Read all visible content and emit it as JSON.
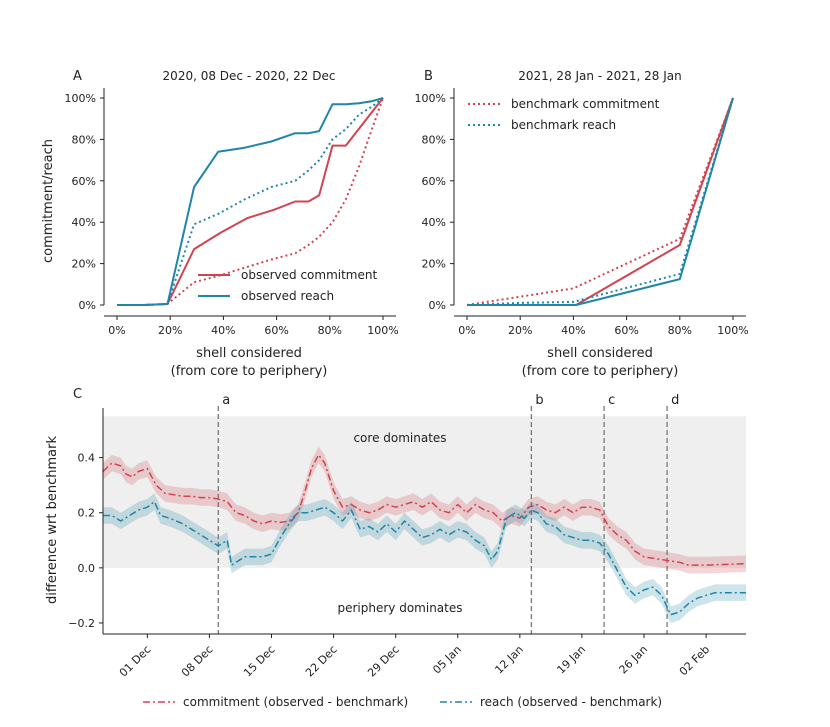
{
  "colors": {
    "commitment": "#d1434f",
    "reach": "#1f86a6",
    "band_grey": "#efefef",
    "vline": "#777777"
  },
  "panels": {
    "A": {
      "letter": "A",
      "title": "2020, 08 Dec - 2020, 22 Dec",
      "ylabel": "commitment/reach",
      "xlabel_line1": "shell considered",
      "xlabel_line2": "(from core to periphery)",
      "xticks": [
        "0%",
        "20%",
        "40%",
        "60%",
        "80%",
        "100%"
      ],
      "yticks": [
        "0%",
        "20%",
        "40%",
        "60%",
        "80%",
        "100%"
      ],
      "legend": [
        "observed commitment",
        "observed reach"
      ]
    },
    "B": {
      "letter": "B",
      "title": "2021, 28 Jan - 2021, 28 Jan",
      "xlabel_line1": "shell considered",
      "xlabel_line2": "(from core to periphery)",
      "xticks": [
        "0%",
        "20%",
        "40%",
        "60%",
        "80%",
        "100%"
      ],
      "yticks": [
        "0%",
        "20%",
        "40%",
        "60%",
        "80%",
        "100%"
      ],
      "legend": [
        "benchmark commitment",
        "benchmark reach"
      ]
    },
    "C": {
      "letter": "C",
      "ylabel": "difference wrt benchmark",
      "yticks": [
        "−0.2",
        "0.0",
        "0.2",
        "0.4"
      ],
      "xticks": [
        "01 Dec",
        "08 Dec",
        "15 Dec",
        "22 Dec",
        "29 Dec",
        "05 Jan",
        "12 Jan",
        "19 Jan",
        "26 Jan",
        "02 Feb"
      ],
      "core_label": "core dominates",
      "periphery_label": "periphery dominates",
      "event_labels": [
        "a",
        "b",
        "c",
        "d"
      ],
      "legend": [
        "commitment (observed - benchmark)",
        "reach (observed - benchmark)"
      ]
    }
  },
  "chart_data": [
    {
      "type": "line",
      "panel": "A",
      "title": "2020, 08 Dec - 2020, 22 Dec",
      "xlabel": "shell considered (from core to periphery)",
      "ylabel": "commitment/reach",
      "xlim": [
        0,
        100
      ],
      "ylim": [
        0,
        100
      ],
      "series": [
        {
          "name": "observed commitment",
          "style": "solid",
          "color": "commitment",
          "x": [
            0,
            10,
            19,
            29,
            39,
            49,
            59,
            67,
            72,
            76,
            81,
            86,
            100
          ],
          "y": [
            0,
            0,
            0.5,
            27,
            35,
            42,
            46,
            50,
            50,
            53,
            77,
            77,
            100
          ]
        },
        {
          "name": "observed reach",
          "style": "solid",
          "color": "reach",
          "x": [
            0,
            10,
            19,
            29,
            38,
            48,
            58,
            67,
            72,
            76,
            81,
            86,
            91,
            96,
            100
          ],
          "y": [
            0,
            0,
            0.5,
            57,
            74,
            76,
            79,
            83,
            83,
            84,
            97,
            97,
            97.5,
            98.5,
            100
          ]
        },
        {
          "name": "benchmark commitment",
          "style": "dotted",
          "color": "commitment",
          "x": [
            0,
            10,
            19,
            29,
            38,
            48,
            58,
            67,
            72,
            76,
            81,
            86,
            91,
            95,
            100
          ],
          "y": [
            0,
            0,
            0.5,
            11,
            14,
            18,
            22,
            25,
            29,
            33,
            40,
            51,
            67,
            82,
            100
          ]
        },
        {
          "name": "benchmark reach",
          "style": "dotted",
          "color": "reach",
          "x": [
            0,
            10,
            19,
            29,
            38,
            48,
            58,
            67,
            72,
            76,
            81,
            86,
            91,
            96,
            100
          ],
          "y": [
            0,
            0,
            0.5,
            39,
            44,
            51,
            57,
            60,
            65,
            70,
            80,
            85,
            92,
            96,
            100
          ]
        }
      ]
    },
    {
      "type": "line",
      "panel": "B",
      "title": "2021, 28 Jan - 2021, 28 Jan",
      "xlabel": "shell considered (from core to periphery)",
      "xlim": [
        0,
        100
      ],
      "ylim": [
        0,
        100
      ],
      "series": [
        {
          "name": "observed commitment",
          "style": "solid",
          "color": "commitment",
          "x": [
            0,
            20,
            41,
            80,
            100
          ],
          "y": [
            0,
            0,
            0,
            29,
            100
          ]
        },
        {
          "name": "observed reach",
          "style": "solid",
          "color": "reach",
          "x": [
            0,
            20,
            41,
            80,
            100
          ],
          "y": [
            0,
            0,
            0,
            12.5,
            100
          ]
        },
        {
          "name": "benchmark commitment",
          "style": "dotted",
          "color": "commitment",
          "x": [
            0,
            20,
            40,
            80,
            100
          ],
          "y": [
            0,
            4,
            8,
            32,
            100
          ]
        },
        {
          "name": "benchmark reach",
          "style": "dotted",
          "color": "reach",
          "x": [
            0,
            20,
            40,
            80,
            100
          ],
          "y": [
            0,
            1,
            1.5,
            15,
            100
          ]
        }
      ]
    },
    {
      "type": "line",
      "panel": "C",
      "ylabel": "difference wrt benchmark",
      "x_unit": "days since 2020-11-26",
      "xlim": [
        0,
        72.5
      ],
      "ylim": [
        -0.24,
        0.58
      ],
      "shaded_region": {
        "y": [
          0,
          0.55
        ]
      },
      "events": [
        {
          "label": "a",
          "x": 13
        },
        {
          "label": "b",
          "x": 48.3
        },
        {
          "label": "c",
          "x": 56.5
        },
        {
          "label": "d",
          "x": 63.6
        }
      ],
      "xtick_days": [
        5,
        12,
        19,
        26,
        33,
        40,
        47,
        54,
        61,
        68
      ],
      "series": [
        {
          "name": "commitment (observed - benchmark)",
          "style": "dashdot",
          "color": "commitment",
          "band": 0.03,
          "x": [
            0,
            1,
            2,
            2.6,
            3.3,
            4,
            5,
            6,
            7,
            8,
            9,
            10,
            11,
            12,
            13,
            14,
            15,
            16,
            17,
            18,
            19,
            20,
            21,
            22,
            22.8,
            23.5,
            24.3,
            25,
            26,
            27,
            28,
            29,
            30,
            31,
            32,
            33,
            34,
            35,
            36,
            37,
            38,
            39,
            40,
            41,
            42,
            43,
            44,
            45,
            46,
            47,
            48,
            49,
            50,
            51,
            52,
            53,
            54,
            55,
            56,
            57,
            58,
            59,
            60,
            61,
            62,
            63,
            64,
            65,
            66,
            67,
            68,
            70,
            72.5
          ],
          "y": [
            0.35,
            0.38,
            0.37,
            0.34,
            0.33,
            0.35,
            0.36,
            0.3,
            0.27,
            0.265,
            0.26,
            0.26,
            0.255,
            0.255,
            0.25,
            0.24,
            0.2,
            0.19,
            0.17,
            0.16,
            0.17,
            0.165,
            0.17,
            0.2,
            0.28,
            0.36,
            0.41,
            0.38,
            0.28,
            0.22,
            0.23,
            0.21,
            0.2,
            0.21,
            0.23,
            0.22,
            0.23,
            0.24,
            0.22,
            0.24,
            0.21,
            0.2,
            0.23,
            0.2,
            0.23,
            0.21,
            0.2,
            0.17,
            0.19,
            0.18,
            0.22,
            0.23,
            0.21,
            0.2,
            0.22,
            0.2,
            0.22,
            0.22,
            0.21,
            0.15,
            0.12,
            0.1,
            0.06,
            0.04,
            0.035,
            0.03,
            0.025,
            0.02,
            0.01,
            0.01,
            0.01,
            0.012,
            0.015
          ]
        },
        {
          "name": "reach (observed - benchmark)",
          "style": "dashdot",
          "color": "reach",
          "band": 0.03,
          "x": [
            0,
            1,
            2,
            3,
            4,
            5,
            5.8,
            6.5,
            7.5,
            9,
            10,
            11,
            12,
            13,
            14,
            14.5,
            15,
            16,
            17,
            18,
            19,
            20,
            21,
            22,
            23,
            24,
            25,
            26,
            27,
            28,
            29,
            30,
            31,
            32,
            33,
            34,
            35,
            36,
            37,
            38,
            39,
            40,
            41,
            42,
            43,
            43.8,
            44.5,
            45.5,
            46.5,
            47.5,
            48.3,
            49,
            50,
            51,
            52,
            53,
            54,
            55,
            56,
            57,
            58,
            59,
            60,
            61,
            62,
            63,
            64,
            65,
            66,
            67,
            68,
            69,
            70,
            72.5
          ],
          "y": [
            0.19,
            0.19,
            0.17,
            0.19,
            0.21,
            0.22,
            0.24,
            0.19,
            0.18,
            0.16,
            0.14,
            0.12,
            0.1,
            0.08,
            0.1,
            0.01,
            0.02,
            0.04,
            0.04,
            0.04,
            0.05,
            0.11,
            0.16,
            0.2,
            0.2,
            0.21,
            0.22,
            0.2,
            0.17,
            0.21,
            0.14,
            0.15,
            0.13,
            0.16,
            0.13,
            0.17,
            0.14,
            0.11,
            0.12,
            0.14,
            0.12,
            0.14,
            0.13,
            0.1,
            0.08,
            0.03,
            0.06,
            0.18,
            0.2,
            0.18,
            0.21,
            0.2,
            0.16,
            0.15,
            0.12,
            0.11,
            0.1,
            0.1,
            0.09,
            0.05,
            -0.01,
            -0.07,
            -0.1,
            -0.08,
            -0.07,
            -0.1,
            -0.17,
            -0.16,
            -0.13,
            -0.11,
            -0.1,
            -0.09,
            -0.09,
            -0.09
          ]
        }
      ]
    }
  ]
}
